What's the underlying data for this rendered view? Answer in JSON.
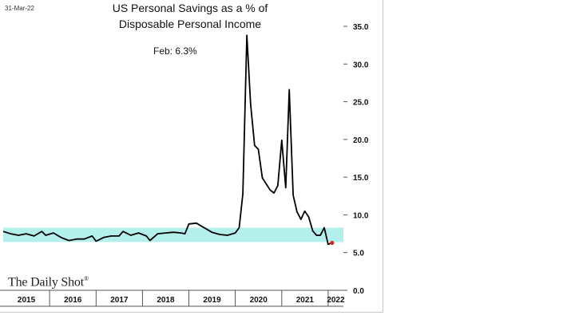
{
  "date_stamp": "31-Mar-22",
  "source_logo": "The Daily Shot",
  "source_logo_mark": "®",
  "colors": {
    "line": "#000000",
    "band": "#b3f0ec",
    "marker": "#d42a20",
    "axis": "#555555"
  },
  "chart_data": {
    "type": "line",
    "title_lines": [
      "US Personal Savings as a % of",
      "Disposable Personal Income"
    ],
    "annotation": "Feb:   6.3%",
    "ylim": [
      0,
      35
    ],
    "yticks": [
      "35.0",
      "30.0",
      "25.0",
      "20.0",
      "15.0",
      "10.0",
      "5.0",
      "0.0"
    ],
    "ytick_values": [
      35,
      30,
      25,
      20,
      15,
      10,
      5,
      0
    ],
    "y_axis_side": "right",
    "x_range": [
      "2015-01-01",
      "2022-05-01"
    ],
    "year_labels": [
      "2015",
      "2016",
      "2017",
      "2018",
      "2019",
      "2020",
      "2021",
      "2022"
    ],
    "band": {
      "from": 6.4,
      "to": 8.3
    },
    "series": [
      {
        "values": [
          [
            "2015-01-01",
            7.8
          ],
          [
            "2015-03-01",
            7.5
          ],
          [
            "2015-05-01",
            7.3
          ],
          [
            "2015-07-01",
            7.5
          ],
          [
            "2015-09-01",
            7.2
          ],
          [
            "2015-11-01",
            7.8
          ],
          [
            "2015-12-01",
            7.3
          ],
          [
            "2016-02-01",
            7.6
          ],
          [
            "2016-04-01",
            7.0
          ],
          [
            "2016-06-01",
            6.6
          ],
          [
            "2016-08-01",
            6.8
          ],
          [
            "2016-10-01",
            6.8
          ],
          [
            "2016-12-01",
            7.2
          ],
          [
            "2017-01-01",
            6.5
          ],
          [
            "2017-03-01",
            7.0
          ],
          [
            "2017-05-01",
            7.2
          ],
          [
            "2017-07-01",
            7.2
          ],
          [
            "2017-08-01",
            7.8
          ],
          [
            "2017-10-01",
            7.3
          ],
          [
            "2017-12-01",
            7.6
          ],
          [
            "2018-02-01",
            7.2
          ],
          [
            "2018-03-01",
            6.6
          ],
          [
            "2018-05-01",
            7.5
          ],
          [
            "2018-07-01",
            7.6
          ],
          [
            "2018-09-01",
            7.7
          ],
          [
            "2018-11-01",
            7.6
          ],
          [
            "2018-12-01",
            7.5
          ],
          [
            "2019-01-01",
            8.8
          ],
          [
            "2019-03-01",
            8.9
          ],
          [
            "2019-05-01",
            8.3
          ],
          [
            "2019-07-01",
            7.7
          ],
          [
            "2019-09-01",
            7.4
          ],
          [
            "2019-11-01",
            7.3
          ],
          [
            "2020-01-01",
            7.6
          ],
          [
            "2020-02-01",
            8.3
          ],
          [
            "2020-03-01",
            12.8
          ],
          [
            "2020-04-01",
            33.8
          ],
          [
            "2020-05-01",
            24.7
          ],
          [
            "2020-06-01",
            19.2
          ],
          [
            "2020-07-01",
            18.7
          ],
          [
            "2020-08-01",
            14.9
          ],
          [
            "2020-09-01",
            14.1
          ],
          [
            "2020-10-01",
            13.3
          ],
          [
            "2020-11-01",
            12.9
          ],
          [
            "2020-12-01",
            13.9
          ],
          [
            "2021-01-01",
            19.9
          ],
          [
            "2021-02-01",
            13.6
          ],
          [
            "2021-03-01",
            26.6
          ],
          [
            "2021-04-01",
            12.6
          ],
          [
            "2021-05-01",
            10.4
          ],
          [
            "2021-06-01",
            9.4
          ],
          [
            "2021-07-01",
            10.5
          ],
          [
            "2021-08-01",
            9.7
          ],
          [
            "2021-09-01",
            7.9
          ],
          [
            "2021-10-01",
            7.3
          ],
          [
            "2021-11-01",
            7.3
          ],
          [
            "2021-12-01",
            8.3
          ],
          [
            "2022-01-01",
            6.1
          ],
          [
            "2022-02-01",
            6.3
          ]
        ]
      }
    ],
    "last_point": [
      "2022-02-01",
      6.3
    ]
  }
}
